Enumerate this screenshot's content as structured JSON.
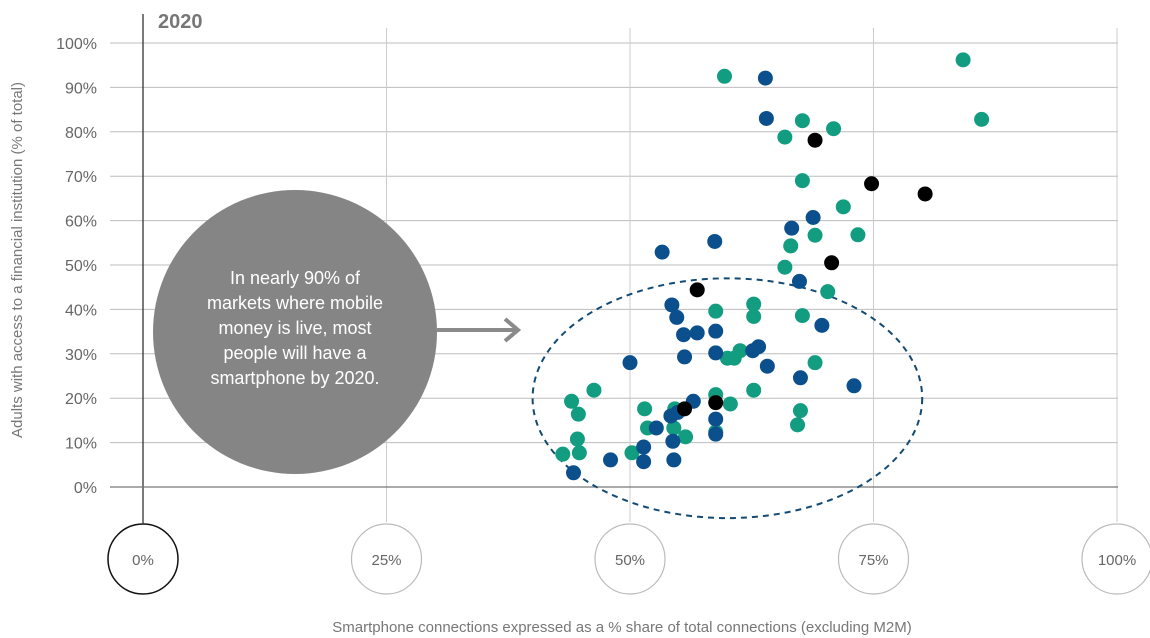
{
  "chart_data": {
    "type": "scatter",
    "title": "2020",
    "xlabel": "Smartphone connections expressed as a % share of total connections (excluding M2M)",
    "ylabel": "Adults with access to a financial institution (% of total)",
    "xlim": [
      -0.065,
      1.0
    ],
    "ylim": [
      0,
      1.0
    ],
    "x_ticks": [
      0,
      0.25,
      0.5,
      0.75,
      1.0
    ],
    "x_tick_labels": [
      "0%",
      "25%",
      "50%",
      "75%",
      "100%"
    ],
    "y_ticks": [
      0,
      0.1,
      0.2,
      0.3,
      0.4,
      0.5,
      0.6,
      0.7,
      0.8,
      0.9,
      1.0
    ],
    "y_tick_labels": [
      "0%",
      "10%",
      "20%",
      "30%",
      "40%",
      "50%",
      "60%",
      "70%",
      "80%",
      "90%",
      "100%"
    ],
    "grid": true,
    "annotation": {
      "text_lines": [
        "In nearly 90% of",
        "markets where mobile",
        "money is live, most",
        "people will have a",
        "smartphone by 2020."
      ],
      "shape": "circle",
      "highlight": "dashed-ellipse",
      "highlight_center": [
        0.6,
        0.2
      ],
      "highlight_radius": [
        0.2,
        0.27
      ],
      "arrow": true
    },
    "series": [
      {
        "color": "#129c80",
        "points": [
          [
            0.597,
            0.925
          ],
          [
            0.842,
            0.962
          ],
          [
            0.861,
            0.828
          ],
          [
            0.677,
            0.825
          ],
          [
            0.709,
            0.807
          ],
          [
            0.659,
            0.788
          ],
          [
            0.677,
            0.69
          ],
          [
            0.719,
            0.631
          ],
          [
            0.734,
            0.568
          ],
          [
            0.69,
            0.567
          ],
          [
            0.665,
            0.543
          ],
          [
            0.659,
            0.495
          ],
          [
            0.703,
            0.44
          ],
          [
            0.627,
            0.412
          ],
          [
            0.627,
            0.384
          ],
          [
            0.677,
            0.386
          ],
          [
            0.588,
            0.396
          ],
          [
            0.613,
            0.307
          ],
          [
            0.6,
            0.29
          ],
          [
            0.607,
            0.29
          ],
          [
            0.69,
            0.28
          ],
          [
            0.463,
            0.218
          ],
          [
            0.44,
            0.193
          ],
          [
            0.627,
            0.218
          ],
          [
            0.588,
            0.208
          ],
          [
            0.603,
            0.187
          ],
          [
            0.675,
            0.172
          ],
          [
            0.447,
            0.164
          ],
          [
            0.515,
            0.176
          ],
          [
            0.546,
            0.176
          ],
          [
            0.672,
            0.14
          ],
          [
            0.518,
            0.133
          ],
          [
            0.545,
            0.133
          ],
          [
            0.557,
            0.113
          ],
          [
            0.588,
            0.124
          ],
          [
            0.446,
            0.108
          ],
          [
            0.448,
            0.077
          ],
          [
            0.431,
            0.074
          ],
          [
            0.502,
            0.077
          ]
        ]
      },
      {
        "color": "#0b4f8c",
        "points": [
          [
            0.639,
            0.921
          ],
          [
            0.64,
            0.83
          ],
          [
            0.688,
            0.607
          ],
          [
            0.666,
            0.583
          ],
          [
            0.587,
            0.553
          ],
          [
            0.533,
            0.529
          ],
          [
            0.674,
            0.463
          ],
          [
            0.543,
            0.41
          ],
          [
            0.548,
            0.382
          ],
          [
            0.697,
            0.364
          ],
          [
            0.588,
            0.351
          ],
          [
            0.569,
            0.347
          ],
          [
            0.555,
            0.343
          ],
          [
            0.632,
            0.316
          ],
          [
            0.626,
            0.307
          ],
          [
            0.588,
            0.302
          ],
          [
            0.556,
            0.293
          ],
          [
            0.641,
            0.272
          ],
          [
            0.5,
            0.28
          ],
          [
            0.675,
            0.246
          ],
          [
            0.73,
            0.228
          ],
          [
            0.565,
            0.193
          ],
          [
            0.542,
            0.16
          ],
          [
            0.549,
            0.168
          ],
          [
            0.588,
            0.153
          ],
          [
            0.527,
            0.133
          ],
          [
            0.588,
            0.119
          ],
          [
            0.544,
            0.103
          ],
          [
            0.514,
            0.09
          ],
          [
            0.48,
            0.061
          ],
          [
            0.514,
            0.057
          ],
          [
            0.545,
            0.061
          ],
          [
            0.442,
            0.032
          ]
        ]
      },
      {
        "color": "#000000",
        "points": [
          [
            0.69,
            0.781
          ],
          [
            0.748,
            0.683
          ],
          [
            0.803,
            0.66
          ],
          [
            0.707,
            0.505
          ],
          [
            0.569,
            0.444
          ],
          [
            0.588,
            0.19
          ],
          [
            0.556,
            0.176
          ]
        ]
      }
    ]
  }
}
